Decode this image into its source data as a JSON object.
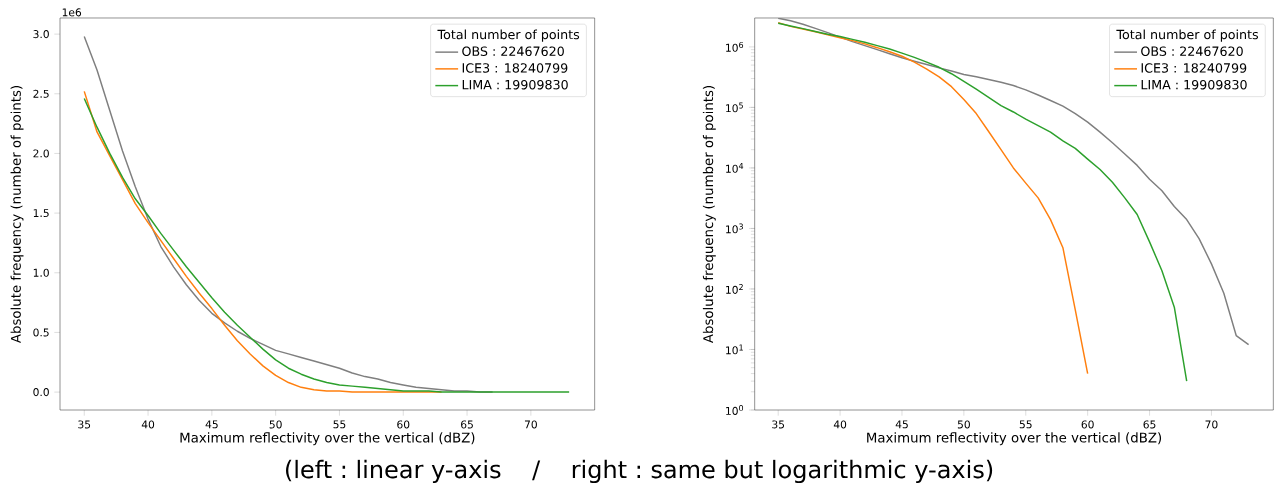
{
  "chart_data": [
    {
      "type": "line",
      "xlabel": "Maximum reflectivity over the vertical (dBZ)",
      "ylabel": "Absolute frequency (number of points)",
      "legend_title": "Total number of points",
      "legend": "top right",
      "annotations": [
        "1e6"
      ],
      "x": [
        35,
        36,
        37,
        38,
        39,
        40,
        41,
        42,
        43,
        44,
        45,
        46,
        47,
        48,
        49,
        50,
        51,
        52,
        53,
        54,
        55,
        56,
        57,
        58,
        59,
        60,
        61,
        62,
        63,
        64,
        65,
        66,
        67,
        68,
        69,
        70,
        71,
        72,
        73
      ],
      "xlim": [
        33.1,
        75.0
      ],
      "xticks": [
        35,
        40,
        45,
        50,
        55,
        60,
        65,
        70
      ],
      "ylim": [
        -0.15,
        3.135
      ],
      "yticks": [
        {
          "value": 0,
          "label": "0.0"
        },
        0.5,
        {
          "value": 1,
          "label": "1.0"
        },
        1.5,
        {
          "value": 2,
          "label": "2.0"
        },
        2.5,
        {
          "value": 3,
          "label": "3.0"
        }
      ],
      "series": [
        {
          "name": "OBS : 22467620",
          "color": "#7f7f7f",
          "values": [
            2.98,
            2.7,
            2.36,
            2.02,
            1.72,
            1.45,
            1.22,
            1.05,
            0.9,
            0.77,
            0.66,
            0.58,
            0.51,
            0.45,
            0.4,
            0.35,
            0.32,
            0.29,
            0.26,
            0.23,
            0.2,
            0.16,
            0.13,
            0.11,
            0.08,
            0.06,
            0.04,
            0.03,
            0.02,
            0.01,
            0.01,
            0,
            0,
            null,
            null,
            null,
            null,
            null,
            null
          ]
        },
        {
          "name": "ICE3 : 18240799",
          "color": "#ff7f0e",
          "values": [
            2.52,
            2.18,
            1.98,
            1.78,
            1.58,
            1.42,
            1.27,
            1.12,
            0.97,
            0.83,
            0.7,
            0.56,
            0.43,
            0.32,
            0.22,
            0.14,
            0.08,
            0.04,
            0.02,
            0.01,
            0.01,
            0,
            0,
            0,
            0,
            0,
            0,
            0,
            0,
            null,
            null,
            null,
            null,
            null,
            null,
            null,
            null,
            null,
            null
          ]
        },
        {
          "name": "LIMA : 19909830",
          "color": "#2ca02c",
          "values": [
            2.46,
            2.22,
            2.0,
            1.8,
            1.62,
            1.48,
            1.33,
            1.19,
            1.05,
            0.92,
            0.79,
            0.67,
            0.56,
            0.46,
            0.36,
            0.27,
            0.2,
            0.15,
            0.11,
            0.08,
            0.06,
            0.05,
            0.04,
            0.03,
            0.02,
            0.01,
            0.01,
            0.01,
            0,
            0,
            0,
            0,
            0,
            0,
            0,
            0,
            0,
            0,
            0
          ]
        }
      ]
    },
    {
      "type": "line",
      "log": "y",
      "xlabel": "Maximum reflectivity over the vertical (dBZ)",
      "ylabel": "Absolute frequency (number of points)",
      "legend_title": "Total number of points",
      "legend": "top right",
      "annotations": [
        "(left : linear y-axis    /    right : same but logarithmic y-axis)"
      ],
      "x": [
        35,
        36,
        37,
        38,
        39,
        40,
        41,
        42,
        43,
        44,
        45,
        46,
        47,
        48,
        49,
        50,
        51,
        52,
        53,
        54,
        55,
        56,
        57,
        58,
        59,
        60,
        61,
        62,
        63,
        64,
        65,
        66,
        67,
        68,
        69,
        70,
        71,
        72,
        73
      ],
      "xlim": [
        33.1,
        75.0
      ],
      "xticks": [
        35,
        40,
        45,
        50,
        55,
        60,
        65,
        70
      ],
      "ylim": [
        1,
        3000000
      ],
      "yticks": [
        {
          "value": 1,
          "label": "10$^{0}$"
        },
        {
          "value": 10,
          "label": "10$^{1}$"
        },
        {
          "value": 100,
          "label": "10$^{2}$"
        },
        {
          "value": 1000,
          "label": "10$^{3}$"
        },
        {
          "value": 10000,
          "label": "10$^{4}$"
        },
        {
          "value": 100000,
          "label": "10$^{5}$"
        },
        {
          "value": 1000000,
          "label": "10$^{6}$"
        }
      ],
      "series": [
        {
          "name": "OBS : 22467620",
          "color": "#7f7f7f",
          "values": [
            2980000,
            2700000,
            2360000,
            2020000,
            1720000,
            1450000,
            1220000,
            1050000,
            900000,
            770000,
            660000,
            580000,
            510000,
            450000,
            400000,
            350000,
            320000,
            290000,
            260000,
            230000,
            195000,
            160000,
            130000,
            105000,
            79000,
            57000,
            39000,
            26000,
            17000,
            11000,
            6500,
            4200,
            2300,
            1400,
            680,
            260,
            85,
            17,
            12
          ]
        },
        {
          "name": "ICE3 : 18240799",
          "color": "#ff7f0e",
          "values": [
            2520000,
            2180000,
            1980000,
            1780000,
            1580000,
            1420000,
            1270000,
            1120000,
            970000,
            830000,
            700000,
            560000,
            430000,
            320000,
            220000,
            135000,
            79000,
            40000,
            20000,
            10000,
            5600,
            3200,
            1400,
            480,
            45,
            4,
            null,
            null,
            null,
            null,
            null,
            null,
            null,
            null,
            null,
            null,
            null,
            null,
            null
          ]
        },
        {
          "name": "LIMA : 19909830",
          "color": "#2ca02c",
          "values": [
            2460000,
            2220000,
            2000000,
            1800000,
            1620000,
            1480000,
            1330000,
            1190000,
            1050000,
            920000,
            790000,
            670000,
            560000,
            460000,
            360000,
            270000,
            200000,
            146000,
            107000,
            84000,
            64000,
            50000,
            39000,
            28000,
            21000,
            14000,
            9400,
            5800,
            3200,
            1700,
            600,
            200,
            50,
            3,
            null,
            null,
            null,
            null,
            null
          ]
        }
      ]
    }
  ]
}
